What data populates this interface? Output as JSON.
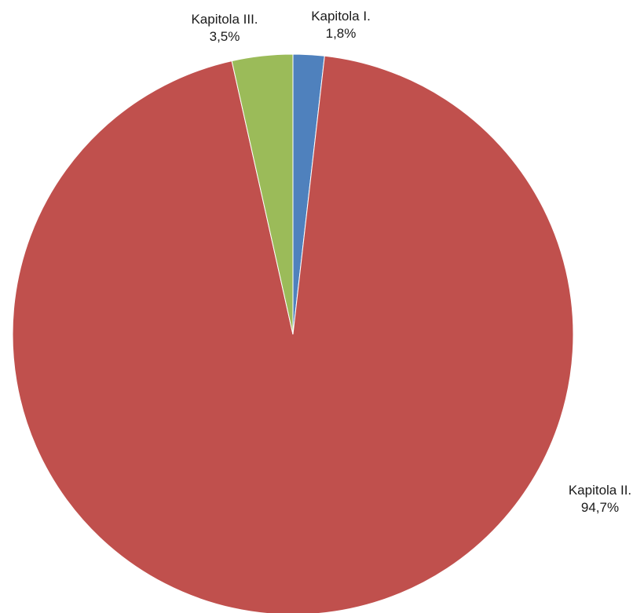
{
  "chart_data": {
    "type": "pie",
    "title": "",
    "legend": "none",
    "start_angle_deg": 0,
    "direction": "clockwise",
    "slices": [
      {
        "label": "Kapitola I.",
        "value": 1.8,
        "value_label": "1,8%",
        "color": "#4F81BD"
      },
      {
        "label": "Kapitola II.",
        "value": 94.7,
        "value_label": "94,7%",
        "color": "#C0504D"
      },
      {
        "label": "Kapitola III.",
        "value": 3.5,
        "value_label": "3,5%",
        "color": "#9BBB59"
      }
    ]
  }
}
